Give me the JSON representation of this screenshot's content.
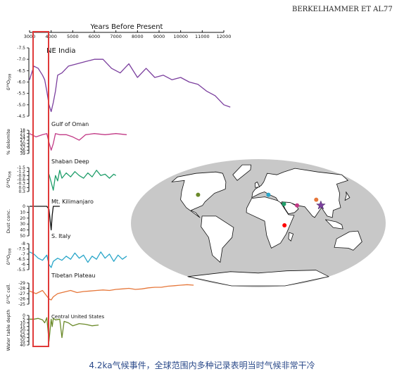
{
  "header": {
    "authors": "BERKELHAMMER ET AL.",
    "page_number": "77"
  },
  "caption": "4.2ka气候事件，全球范围内多种记录表明当时气候非常干冷",
  "colors": {
    "purple": "#7b3f9e",
    "magenta": "#c23a86",
    "green": "#1f9e6a",
    "black": "#111111",
    "cyan": "#2aa6c9",
    "orange": "#e6773a",
    "olive": "#6b8a2a",
    "highlight": "#e03a3a",
    "ocean": "#c8c8c8"
  },
  "chart_data": [
    {
      "type": "line",
      "title": "NE India",
      "xaxis_title": "Years Before Present",
      "xticks": [
        3000,
        4000,
        5000,
        6000,
        7000,
        8000,
        9000,
        10000,
        11000,
        12000
      ],
      "xlim": [
        3000,
        12000
      ],
      "ylabel": "δ¹⁸O",
      "ylabel_sub": "PDB",
      "yticks": [
        "-7.5",
        "-7.0",
        "-6.5",
        "-6.0",
        "-5.5",
        "-5.0",
        "-4.5"
      ],
      "ylim": [
        -7.5,
        -4.5
      ],
      "y_inverted": true,
      "series": [
        {
          "color": "purple",
          "x": [
            3000,
            3200,
            3400,
            3600,
            3700,
            3800,
            3900,
            4000,
            4100,
            4200,
            4300,
            4500,
            4800,
            5200,
            5600,
            6000,
            6400,
            6800,
            7200,
            7600,
            8000,
            8400,
            8800,
            9200,
            9600,
            10000,
            10400,
            10800,
            11200,
            11600,
            12000,
            12300
          ],
          "y": [
            -6.1,
            -6.7,
            -6.6,
            -6.3,
            -6.1,
            -5.6,
            -5.0,
            -4.7,
            -5.1,
            -5.6,
            -6.3,
            -6.4,
            -6.7,
            -6.8,
            -6.9,
            -7.0,
            -7.0,
            -6.6,
            -6.4,
            -6.8,
            -6.2,
            -6.6,
            -6.2,
            -6.3,
            -6.1,
            -6.2,
            -6.0,
            -5.9,
            -5.6,
            -5.4,
            -5.0,
            -4.9
          ]
        }
      ]
    },
    {
      "type": "line",
      "title": "Gulf of Oman",
      "ylabel": "% dolomite",
      "yticks": [
        "18",
        "21",
        "24",
        "27",
        "30",
        "33",
        "36",
        "39"
      ],
      "ylim": [
        18,
        39
      ],
      "y_inverted": true,
      "series": [
        {
          "color": "magenta",
          "x": [
            3000,
            3300,
            3600,
            3800,
            3900,
            4000,
            4100,
            4200,
            4400,
            4700,
            5000,
            5300,
            5600,
            6000,
            6500,
            7000,
            7500
          ],
          "y": [
            21,
            24,
            22,
            21,
            29,
            36,
            30,
            21,
            22,
            22,
            24,
            27,
            22,
            21,
            22,
            21,
            22
          ]
        }
      ]
    },
    {
      "type": "line",
      "title": "Shaban Deep",
      "ylabel": "δ¹⁸O",
      "ylabel_sub": "PDB",
      "yticks": [
        "-1.5",
        "-1.2",
        "-0.9",
        "-0.6",
        "-0.3",
        "0.0",
        "0.3"
      ],
      "ylim": [
        -1.5,
        0.3
      ],
      "y_inverted": true,
      "series": [
        {
          "color": "green",
          "x": [
            3900,
            4000,
            4100,
            4200,
            4300,
            4400,
            4500,
            4700,
            4900,
            5100,
            5300,
            5500,
            5700,
            5900,
            6100,
            6300,
            6500,
            6700,
            6900,
            7000
          ],
          "y": [
            -1.0,
            -0.4,
            0.2,
            -0.9,
            -0.5,
            -1.3,
            -0.7,
            -1.1,
            -0.8,
            -1.2,
            -0.9,
            -0.7,
            -1.1,
            -0.8,
            -1.3,
            -0.9,
            -1.0,
            -0.7,
            -1.0,
            -0.9
          ]
        }
      ]
    },
    {
      "type": "line",
      "title": "Mt. Kilimanjaro",
      "ylabel": "Dust conc.",
      "yticks": [
        "0",
        "10",
        "20",
        "30",
        "40",
        "50"
      ],
      "ylim": [
        0,
        50
      ],
      "y_inverted": true,
      "series": [
        {
          "color": "black",
          "x": [
            3000,
            3800,
            3900,
            4000,
            4050,
            4100,
            4200,
            4400
          ],
          "y": [
            0,
            0,
            5,
            40,
            15,
            0,
            0,
            0
          ]
        }
      ]
    },
    {
      "type": "line",
      "title": "S. Italy",
      "ylabel": "δ¹⁸O",
      "ylabel_sub": "PDB",
      "yticks": [
        "-8",
        "-7.5",
        "-7",
        "-6.5",
        "-6",
        "-5.5"
      ],
      "ylim": [
        -8,
        -5.5
      ],
      "y_inverted": true,
      "series": [
        {
          "color": "cyan",
          "x": [
            3000,
            3200,
            3400,
            3600,
            3800,
            3900,
            4000,
            4100,
            4300,
            4500,
            4700,
            4900,
            5100,
            5300,
            5500,
            5700,
            5900,
            6100,
            6300,
            6500,
            6700,
            6900,
            7100,
            7300,
            7500
          ],
          "y": [
            -7.2,
            -7.0,
            -6.6,
            -6.4,
            -6.9,
            -6.0,
            -5.7,
            -6.3,
            -6.6,
            -6.4,
            -6.8,
            -6.5,
            -7.1,
            -6.6,
            -6.9,
            -6.2,
            -6.8,
            -6.5,
            -7.2,
            -6.6,
            -7.0,
            -6.3,
            -6.9,
            -6.5,
            -6.8
          ]
        }
      ]
    },
    {
      "type": "line",
      "title": "Tibetan Plateau",
      "ylabel": "δ¹³C cell.",
      "yticks": [
        "-29",
        "-28",
        "-27",
        "-26",
        "-25"
      ],
      "ylim": [
        -29,
        -25
      ],
      "y_inverted": true,
      "series": [
        {
          "color": "orange",
          "x": [
            3000,
            3300,
            3600,
            3900,
            4000,
            4100,
            4300,
            4600,
            4900,
            5200,
            5500,
            5800,
            6100,
            6400,
            6700,
            7000,
            7300,
            7600,
            7900,
            8200,
            8500,
            8800,
            9100,
            9400,
            9700,
            10000,
            10300,
            10600
          ],
          "y": [
            -27.5,
            -27.0,
            -27.6,
            -26.0,
            -25.8,
            -26.4,
            -27.0,
            -27.3,
            -27.6,
            -27.2,
            -27.4,
            -27.5,
            -27.6,
            -27.7,
            -27.6,
            -27.8,
            -27.9,
            -28.0,
            -27.8,
            -27.9,
            -28.1,
            -28.2,
            -28.2,
            -28.4,
            -28.5,
            -28.6,
            -28.7,
            -28.6
          ]
        }
      ]
    },
    {
      "type": "line",
      "title": "Central United States",
      "ylabel": "Water table depth",
      "yticks": [
        "0",
        "5",
        "10",
        "15",
        "20",
        "25",
        "30",
        "35",
        "40"
      ],
      "ylim": [
        0,
        40
      ],
      "y_inverted": true,
      "series": [
        {
          "color": "olive",
          "x": [
            3000,
            3200,
            3400,
            3600,
            3700,
            3800,
            3900,
            4000,
            4050,
            4100,
            4200,
            4400,
            4500,
            4600,
            4800,
            5000,
            5300,
            5600,
            5900,
            6200
          ],
          "y": [
            5,
            5,
            4,
            6,
            10,
            3,
            35,
            5,
            15,
            4,
            6,
            5,
            30,
            8,
            10,
            14,
            11,
            12,
            14,
            13
          ]
        }
      ]
    }
  ],
  "map": {
    "type": "scatter",
    "projection": "Mollweide world map",
    "sites": [
      {
        "color": "olive",
        "lon": -95,
        "lat": 40
      },
      {
        "color": "cyan",
        "lon": 16,
        "lat": 40
      },
      {
        "color": "green",
        "lon": 38,
        "lat": 27
      },
      {
        "color": "magenta",
        "lon": 57,
        "lat": 25
      },
      {
        "color": "orange",
        "lon": 88,
        "lat": 33
      },
      {
        "color": "red",
        "lon": 37,
        "lat": -3
      },
      {
        "color": "purple",
        "lon": 92,
        "lat": 25,
        "marker": "star"
      }
    ]
  }
}
